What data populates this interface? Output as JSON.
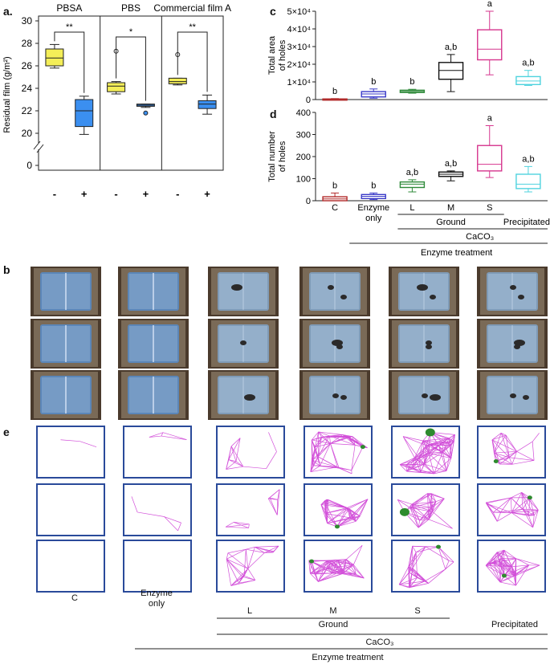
{
  "panel_labels": {
    "a": "a.",
    "b": "b",
    "c": "c",
    "d": "d",
    "e": "e"
  },
  "panel_a": {
    "ylabel": "Residual film (g/m²)",
    "groups": [
      "PBSA",
      "PBS",
      "Commercial film A"
    ],
    "x_ticks": [
      "-",
      "+",
      "-",
      "+",
      "-",
      "+"
    ],
    "y_ticks": [
      "30",
      "28",
      "26",
      "24",
      "22",
      "20",
      "0"
    ],
    "significance": [
      "**",
      "*",
      "**"
    ]
  },
  "panel_c": {
    "ylabel": [
      "Total area",
      "of holes"
    ],
    "y_ticks": [
      "0",
      "1×10⁴",
      "2×10⁴",
      "3×10⁴",
      "4×10⁴",
      "5×10⁴"
    ],
    "letters": [
      "b",
      "b",
      "b",
      "a,b",
      "a",
      "a,b"
    ]
  },
  "panel_d": {
    "ylabel": [
      "Total number",
      "of holes"
    ],
    "y_ticks": [
      "0",
      "100",
      "200",
      "300",
      "400"
    ],
    "letters": [
      "b",
      "b",
      "a,b",
      "a,b",
      "a",
      "a,b"
    ]
  },
  "categories": [
    "C",
    "Enzyme only",
    "L",
    "M",
    "S",
    "Precipitated"
  ],
  "categories_e": {
    "c": "C",
    "enzyme_line1": "Enzyme",
    "enzyme_line2": "only",
    "l": "L",
    "m": "M",
    "s": "S",
    "precip": "Precipitated"
  },
  "grouping": {
    "ground": "Ground",
    "caco3": "CaCO₃",
    "enzyme_treatment": "Enzyme treatment",
    "enzyme_line1": "Enzyme",
    "enzyme_line2": "only"
  },
  "colors": {
    "plus_box": "#3b8ff0",
    "minus_box": "#f4ee58",
    "C": "#b22a2a",
    "Enzyme only": "#3a3ac8",
    "L": "#2f8a3a",
    "M": "#111111",
    "S": "#d6368e",
    "Precipitated": "#4fd3de",
    "mesh": "#d24fd9",
    "hole": "#2e8b2e",
    "frame": "#2a4a9a"
  },
  "chart_data": [
    {
      "id": "a",
      "type": "box",
      "ylabel": "Residual film (g/m²)",
      "ylim": [
        20,
        30
      ],
      "categories": [
        "PBSA -",
        "PBSA +",
        "PBS -",
        "PBS +",
        "Commercial film A -",
        "Commercial film A +"
      ],
      "boxes": [
        {
          "min": 25.8,
          "q1": 26.0,
          "median": 26.7,
          "q3": 27.5,
          "max": 27.9,
          "outliers": []
        },
        {
          "min": 19.9,
          "q1": 20.6,
          "median": 22.0,
          "q3": 23.0,
          "max": 23.3,
          "outliers": []
        },
        {
          "min": 23.5,
          "q1": 23.7,
          "median": 24.2,
          "q3": 24.5,
          "max": 24.6,
          "outliers": [
            27.3
          ]
        },
        {
          "min": 22.3,
          "q1": 22.4,
          "median": 22.5,
          "q3": 22.6,
          "max": 22.6,
          "outliers": [
            21.8
          ]
        },
        {
          "min": 24.3,
          "q1": 24.4,
          "median": 24.6,
          "q3": 24.9,
          "max": 24.9,
          "outliers": [
            27.0
          ]
        },
        {
          "min": 21.7,
          "q1": 22.2,
          "median": 22.6,
          "q3": 22.9,
          "max": 23.4,
          "outliers": []
        }
      ]
    },
    {
      "id": "c",
      "type": "box",
      "ylabel": "Total area of holes",
      "ylim": [
        0,
        50000
      ],
      "categories": [
        "C",
        "Enzyme only",
        "L",
        "M",
        "S",
        "Precipitated"
      ],
      "boxes": [
        {
          "min": 0,
          "q1": 0,
          "median": 150,
          "q3": 350,
          "max": 550
        },
        {
          "min": 800,
          "q1": 1500,
          "median": 3200,
          "q3": 4500,
          "max": 6000
        },
        {
          "min": 3600,
          "q1": 4000,
          "median": 4600,
          "q3": 5300,
          "max": 5800
        },
        {
          "min": 4500,
          "q1": 11500,
          "median": 16500,
          "q3": 21000,
          "max": 25500
        },
        {
          "min": 14000,
          "q1": 22500,
          "median": 28500,
          "q3": 39500,
          "max": 50000
        },
        {
          "min": 8000,
          "q1": 8500,
          "median": 10500,
          "q3": 13000,
          "max": 16500
        }
      ]
    },
    {
      "id": "d",
      "type": "box",
      "ylabel": "Total number of holes",
      "ylim": [
        0,
        400
      ],
      "categories": [
        "C",
        "Enzyme only",
        "L",
        "M",
        "S",
        "Precipitated"
      ],
      "boxes": [
        {
          "min": 0,
          "q1": 0,
          "median": 8,
          "q3": 18,
          "max": 35
        },
        {
          "min": 5,
          "q1": 10,
          "median": 20,
          "q3": 28,
          "max": 35
        },
        {
          "min": 40,
          "q1": 60,
          "median": 75,
          "q3": 85,
          "max": 95
        },
        {
          "min": 90,
          "q1": 110,
          "median": 120,
          "q3": 130,
          "max": 135
        },
        {
          "min": 105,
          "q1": 135,
          "median": 165,
          "q3": 250,
          "max": 340
        },
        {
          "min": 40,
          "q1": 55,
          "median": 75,
          "q3": 120,
          "max": 155
        }
      ]
    }
  ]
}
